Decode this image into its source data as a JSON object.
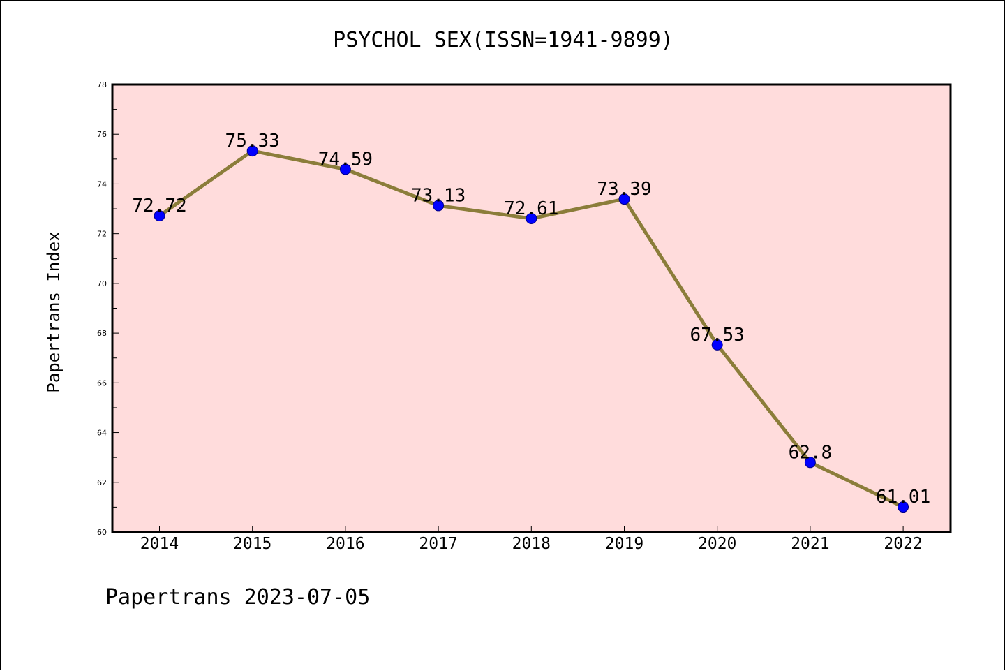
{
  "chart_data": {
    "type": "line",
    "title": "PSYCHOL SEX(ISSN=1941-9899)",
    "xlabel": "",
    "ylabel": "Papertrans Index",
    "categories": [
      "2014",
      "2015",
      "2016",
      "2017",
      "2018",
      "2019",
      "2020",
      "2021",
      "2022"
    ],
    "series": [
      {
        "values": [
          72.72,
          75.33,
          74.59,
          73.13,
          72.61,
          73.39,
          67.53,
          62.8,
          61.01
        ],
        "labels": [
          "72.72",
          "75.33",
          "74.59",
          "73.13",
          "72.61",
          "73.39",
          "67.53",
          "62.8",
          "61.01"
        ],
        "line_color": "#8b7d3a",
        "marker_color": "#0000ff"
      }
    ],
    "ylim": [
      60,
      78
    ],
    "yticks": [
      "60",
      "62",
      "64",
      "66",
      "68",
      "70",
      "72",
      "74",
      "76",
      "78"
    ],
    "plot_background": "#ffdcdc",
    "grid": false,
    "legend": "none"
  },
  "footer": "Papertrans 2023-07-05"
}
